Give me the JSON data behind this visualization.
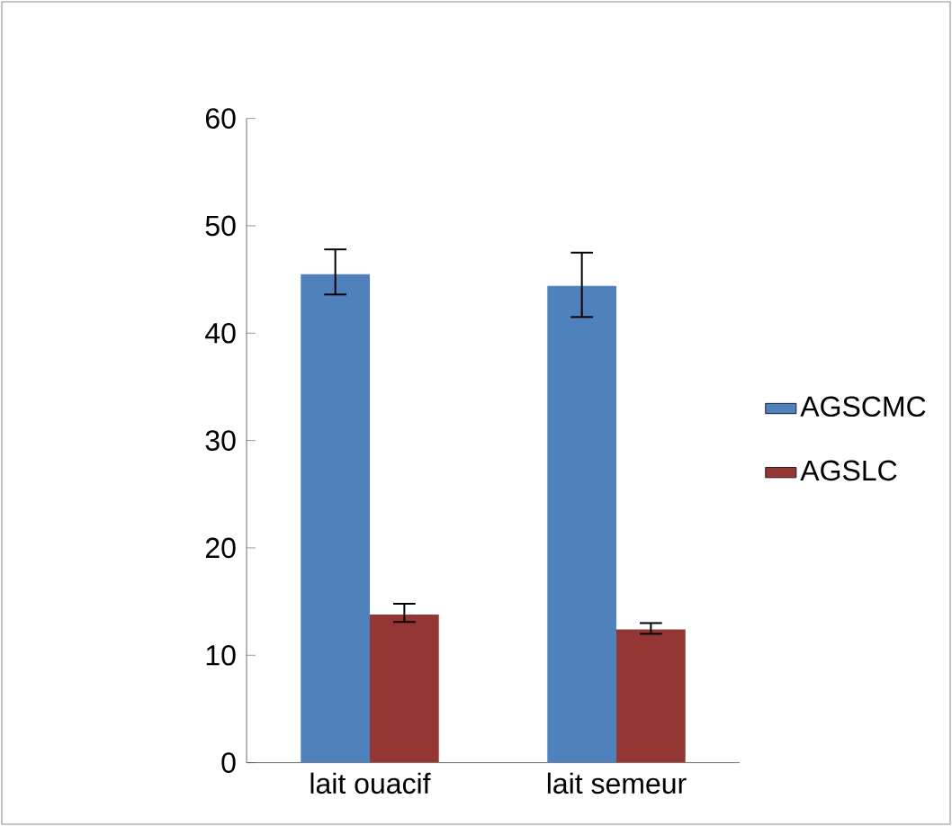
{
  "chart_data": {
    "type": "bar",
    "categories": [
      "lait ouacif",
      "lait semeur"
    ],
    "series": [
      {
        "name": "AGSCMC",
        "color": "#4f81bd",
        "values": [
          45.5,
          44.4
        ],
        "errors": [
          [
            43.6,
            47.8
          ],
          [
            41.5,
            47.5
          ]
        ]
      },
      {
        "name": "AGSLC",
        "color": "#943634",
        "values": [
          13.8,
          12.4
        ],
        "errors": [
          [
            13.1,
            14.8
          ],
          [
            12.0,
            13.0
          ]
        ]
      }
    ],
    "ylim": [
      0,
      60
    ],
    "yticks": [
      0,
      10,
      20,
      30,
      40,
      50,
      60
    ],
    "grid": false,
    "legend": "right"
  }
}
